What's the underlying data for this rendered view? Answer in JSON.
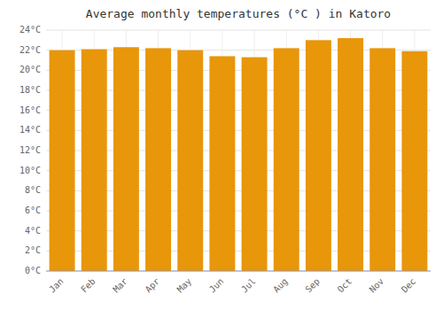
{
  "chart_data": {
    "type": "bar",
    "title": "Average monthly temperatures (°C ) in Katoro",
    "categories": [
      "Jan",
      "Feb",
      "Mar",
      "Apr",
      "May",
      "Jun",
      "Jul",
      "Aug",
      "Sep",
      "Oct",
      "Nov",
      "Dec"
    ],
    "values": [
      22.0,
      22.1,
      22.3,
      22.2,
      22.0,
      21.4,
      21.3,
      22.2,
      23.0,
      23.2,
      22.2,
      21.9
    ],
    "color": "#E8960A",
    "ylim": [
      0,
      24
    ],
    "yticks": [
      {
        "value": 0,
        "label": "0°C"
      },
      {
        "value": 2,
        "label": "2°C"
      },
      {
        "value": 4,
        "label": "4°C"
      },
      {
        "value": 6,
        "label": "6°C"
      },
      {
        "value": 8,
        "label": "8°C"
      },
      {
        "value": 10,
        "label": "10°C"
      },
      {
        "value": 12,
        "label": "12°C"
      },
      {
        "value": 14,
        "label": "14°C"
      },
      {
        "value": 16,
        "label": "16°C"
      },
      {
        "value": 18,
        "label": "18°C"
      },
      {
        "value": 20,
        "label": "20°C"
      },
      {
        "value": 22,
        "label": "22°C"
      },
      {
        "value": 24,
        "label": "24°C"
      }
    ],
    "grid": true
  }
}
